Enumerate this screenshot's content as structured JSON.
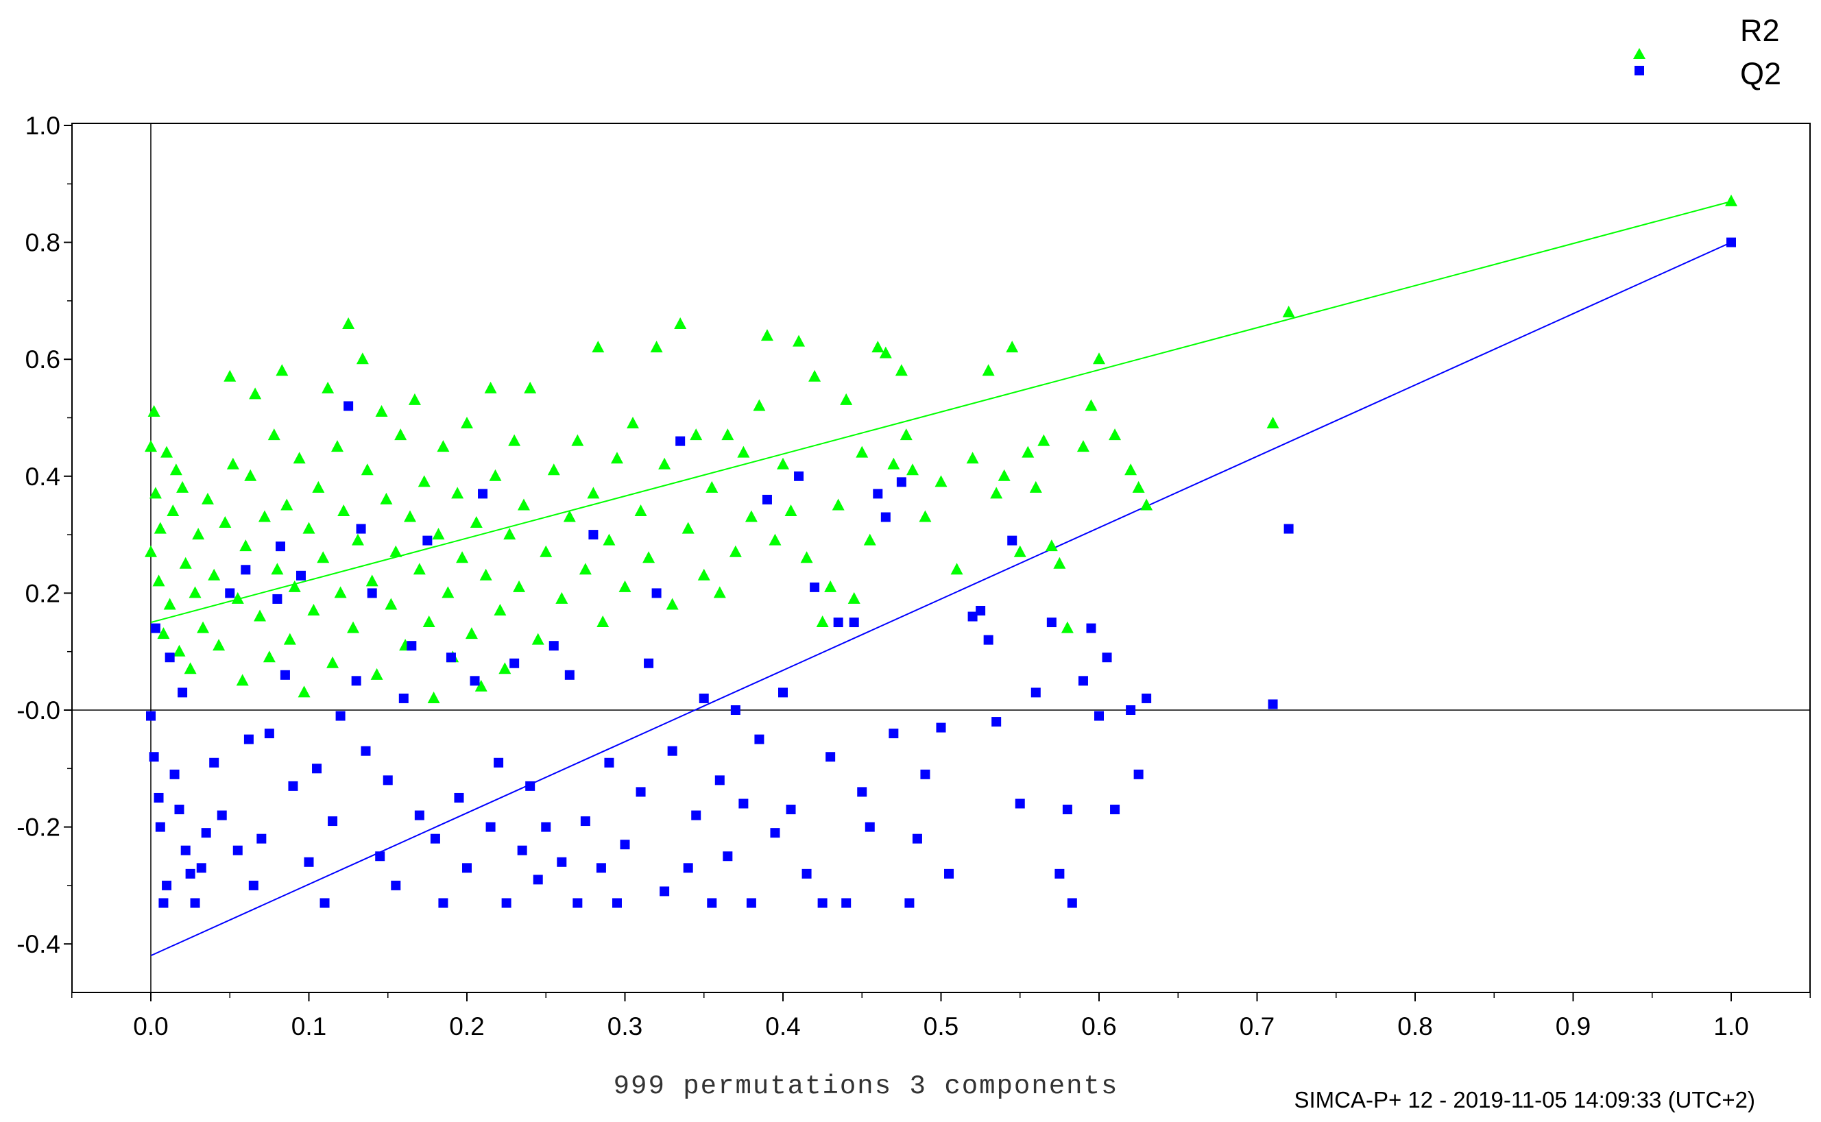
{
  "chart_data": {
    "type": "scatter",
    "title": "",
    "xlabel": "999 permutations 3 components",
    "ylabel": "",
    "footer": "SIMCA-P+ 12 - 2019-11-05 14:09:33 (UTC+2)",
    "xlim": [
      -0.05,
      1.05
    ],
    "ylim": [
      -0.49,
      1.0
    ],
    "x_ticks": [
      0.0,
      0.1,
      0.2,
      0.3,
      0.4,
      0.5,
      0.6,
      0.7,
      0.8,
      0.9,
      1.0
    ],
    "x_tick_labels": [
      "0.0",
      "0.1",
      "0.2",
      "0.3",
      "0.4",
      "0.5",
      "0.6",
      "0.7",
      "0.8",
      "0.9",
      "1.0"
    ],
    "y_ticks": [
      1.0,
      0.8,
      0.6,
      0.4,
      0.2,
      0.0,
      -0.2,
      -0.4
    ],
    "y_tick_labels": [
      "1.0",
      "0.8",
      "0.6",
      "0.4",
      "0.2",
      "-0.0",
      "-0.2",
      "-0.4"
    ],
    "grid": false,
    "legend_position": "top-right",
    "series": [
      {
        "name": "R2",
        "color": "#00ff00",
        "marker": "triangle",
        "regression": {
          "intercept": 0.15,
          "slope": 0.72
        },
        "points": [
          [
            0.0,
            0.45
          ],
          [
            0.0,
            0.27
          ],
          [
            0.002,
            0.51
          ],
          [
            0.003,
            0.37
          ],
          [
            0.005,
            0.22
          ],
          [
            0.006,
            0.31
          ],
          [
            0.008,
            0.13
          ],
          [
            0.01,
            0.44
          ],
          [
            0.012,
            0.18
          ],
          [
            0.014,
            0.34
          ],
          [
            0.016,
            0.41
          ],
          [
            0.018,
            0.1
          ],
          [
            0.02,
            0.38
          ],
          [
            0.022,
            0.25
          ],
          [
            0.025,
            0.07
          ],
          [
            0.028,
            0.2
          ],
          [
            0.03,
            0.3
          ],
          [
            0.033,
            0.14
          ],
          [
            0.036,
            0.36
          ],
          [
            0.04,
            0.23
          ],
          [
            0.043,
            0.11
          ],
          [
            0.047,
            0.32
          ],
          [
            0.05,
            0.57
          ],
          [
            0.052,
            0.42
          ],
          [
            0.055,
            0.19
          ],
          [
            0.058,
            0.05
          ],
          [
            0.06,
            0.28
          ],
          [
            0.063,
            0.4
          ],
          [
            0.066,
            0.54
          ],
          [
            0.069,
            0.16
          ],
          [
            0.072,
            0.33
          ],
          [
            0.075,
            0.09
          ],
          [
            0.078,
            0.47
          ],
          [
            0.08,
            0.24
          ],
          [
            0.083,
            0.58
          ],
          [
            0.086,
            0.35
          ],
          [
            0.088,
            0.12
          ],
          [
            0.091,
            0.21
          ],
          [
            0.094,
            0.43
          ],
          [
            0.097,
            0.03
          ],
          [
            0.1,
            0.31
          ],
          [
            0.103,
            0.17
          ],
          [
            0.106,
            0.38
          ],
          [
            0.109,
            0.26
          ],
          [
            0.112,
            0.55
          ],
          [
            0.115,
            0.08
          ],
          [
            0.118,
            0.45
          ],
          [
            0.12,
            0.2
          ],
          [
            0.122,
            0.34
          ],
          [
            0.125,
            0.66
          ],
          [
            0.128,
            0.14
          ],
          [
            0.131,
            0.29
          ],
          [
            0.134,
            0.6
          ],
          [
            0.137,
            0.41
          ],
          [
            0.14,
            0.22
          ],
          [
            0.143,
            0.06
          ],
          [
            0.146,
            0.51
          ],
          [
            0.149,
            0.36
          ],
          [
            0.152,
            0.18
          ],
          [
            0.155,
            0.27
          ],
          [
            0.158,
            0.47
          ],
          [
            0.161,
            0.11
          ],
          [
            0.164,
            0.33
          ],
          [
            0.167,
            0.53
          ],
          [
            0.17,
            0.24
          ],
          [
            0.173,
            0.39
          ],
          [
            0.176,
            0.15
          ],
          [
            0.179,
            0.02
          ],
          [
            0.182,
            0.3
          ],
          [
            0.185,
            0.45
          ],
          [
            0.188,
            0.2
          ],
          [
            0.191,
            0.09
          ],
          [
            0.194,
            0.37
          ],
          [
            0.197,
            0.26
          ],
          [
            0.2,
            0.49
          ],
          [
            0.203,
            0.13
          ],
          [
            0.206,
            0.32
          ],
          [
            0.209,
            0.04
          ],
          [
            0.212,
            0.23
          ],
          [
            0.215,
            0.55
          ],
          [
            0.218,
            0.4
          ],
          [
            0.221,
            0.17
          ],
          [
            0.224,
            0.07
          ],
          [
            0.227,
            0.3
          ],
          [
            0.23,
            0.46
          ],
          [
            0.233,
            0.21
          ],
          [
            0.236,
            0.35
          ],
          [
            0.24,
            0.55
          ],
          [
            0.245,
            0.12
          ],
          [
            0.25,
            0.27
          ],
          [
            0.255,
            0.41
          ],
          [
            0.26,
            0.19
          ],
          [
            0.265,
            0.33
          ],
          [
            0.27,
            0.46
          ],
          [
            0.275,
            0.24
          ],
          [
            0.28,
            0.37
          ],
          [
            0.283,
            0.62
          ],
          [
            0.286,
            0.15
          ],
          [
            0.29,
            0.29
          ],
          [
            0.295,
            0.43
          ],
          [
            0.3,
            0.21
          ],
          [
            0.305,
            0.49
          ],
          [
            0.31,
            0.34
          ],
          [
            0.315,
            0.26
          ],
          [
            0.32,
            0.62
          ],
          [
            0.325,
            0.42
          ],
          [
            0.33,
            0.18
          ],
          [
            0.335,
            0.66
          ],
          [
            0.34,
            0.31
          ],
          [
            0.345,
            0.47
          ],
          [
            0.35,
            0.23
          ],
          [
            0.355,
            0.38
          ],
          [
            0.36,
            0.2
          ],
          [
            0.365,
            0.47
          ],
          [
            0.37,
            0.27
          ],
          [
            0.375,
            0.44
          ],
          [
            0.38,
            0.33
          ],
          [
            0.385,
            0.52
          ],
          [
            0.39,
            0.64
          ],
          [
            0.395,
            0.29
          ],
          [
            0.4,
            0.42
          ],
          [
            0.405,
            0.34
          ],
          [
            0.41,
            0.63
          ],
          [
            0.415,
            0.26
          ],
          [
            0.42,
            0.57
          ],
          [
            0.425,
            0.15
          ],
          [
            0.43,
            0.21
          ],
          [
            0.435,
            0.35
          ],
          [
            0.44,
            0.53
          ],
          [
            0.445,
            0.19
          ],
          [
            0.45,
            0.44
          ],
          [
            0.455,
            0.29
          ],
          [
            0.46,
            0.62
          ],
          [
            0.465,
            0.61
          ],
          [
            0.47,
            0.42
          ],
          [
            0.475,
            0.58
          ],
          [
            0.478,
            0.47
          ],
          [
            0.482,
            0.41
          ],
          [
            0.49,
            0.33
          ],
          [
            0.5,
            0.39
          ],
          [
            0.51,
            0.24
          ],
          [
            0.52,
            0.43
          ],
          [
            0.53,
            0.58
          ],
          [
            0.535,
            0.37
          ],
          [
            0.54,
            0.4
          ],
          [
            0.545,
            0.62
          ],
          [
            0.55,
            0.27
          ],
          [
            0.555,
            0.44
          ],
          [
            0.56,
            0.38
          ],
          [
            0.565,
            0.46
          ],
          [
            0.57,
            0.28
          ],
          [
            0.575,
            0.25
          ],
          [
            0.58,
            0.14
          ],
          [
            0.59,
            0.45
          ],
          [
            0.595,
            0.52
          ],
          [
            0.6,
            0.6
          ],
          [
            0.61,
            0.47
          ],
          [
            0.62,
            0.41
          ],
          [
            0.625,
            0.38
          ],
          [
            0.63,
            0.35
          ],
          [
            0.71,
            0.49
          ],
          [
            0.72,
            0.68
          ],
          [
            1.0,
            0.87
          ]
        ]
      },
      {
        "name": "Q2",
        "color": "#0000ff",
        "marker": "square",
        "regression": {
          "intercept": -0.42,
          "slope": 1.22
        },
        "points": [
          [
            0.0,
            -0.01
          ],
          [
            0.002,
            -0.08
          ],
          [
            0.003,
            0.14
          ],
          [
            0.005,
            -0.15
          ],
          [
            0.006,
            -0.2
          ],
          [
            0.008,
            -0.33
          ],
          [
            0.01,
            -0.3
          ],
          [
            0.012,
            0.09
          ],
          [
            0.015,
            -0.11
          ],
          [
            0.018,
            -0.17
          ],
          [
            0.02,
            0.03
          ],
          [
            0.022,
            -0.24
          ],
          [
            0.025,
            -0.28
          ],
          [
            0.028,
            -0.33
          ],
          [
            0.032,
            -0.27
          ],
          [
            0.035,
            -0.21
          ],
          [
            0.04,
            -0.09
          ],
          [
            0.045,
            -0.18
          ],
          [
            0.05,
            0.2
          ],
          [
            0.055,
            -0.24
          ],
          [
            0.06,
            0.24
          ],
          [
            0.062,
            -0.05
          ],
          [
            0.065,
            -0.3
          ],
          [
            0.07,
            -0.22
          ],
          [
            0.075,
            -0.04
          ],
          [
            0.08,
            0.19
          ],
          [
            0.082,
            0.28
          ],
          [
            0.085,
            0.06
          ],
          [
            0.09,
            -0.13
          ],
          [
            0.095,
            0.23
          ],
          [
            0.1,
            -0.26
          ],
          [
            0.105,
            -0.1
          ],
          [
            0.11,
            -0.33
          ],
          [
            0.115,
            -0.19
          ],
          [
            0.12,
            -0.01
          ],
          [
            0.125,
            0.52
          ],
          [
            0.13,
            0.05
          ],
          [
            0.133,
            0.31
          ],
          [
            0.136,
            -0.07
          ],
          [
            0.14,
            0.2
          ],
          [
            0.145,
            -0.25
          ],
          [
            0.15,
            -0.12
          ],
          [
            0.155,
            -0.3
          ],
          [
            0.16,
            0.02
          ],
          [
            0.165,
            0.11
          ],
          [
            0.17,
            -0.18
          ],
          [
            0.175,
            0.29
          ],
          [
            0.18,
            -0.22
          ],
          [
            0.185,
            -0.33
          ],
          [
            0.19,
            0.09
          ],
          [
            0.195,
            -0.15
          ],
          [
            0.2,
            -0.27
          ],
          [
            0.205,
            0.05
          ],
          [
            0.21,
            0.37
          ],
          [
            0.215,
            -0.2
          ],
          [
            0.22,
            -0.09
          ],
          [
            0.225,
            -0.33
          ],
          [
            0.23,
            0.08
          ],
          [
            0.235,
            -0.24
          ],
          [
            0.24,
            -0.13
          ],
          [
            0.245,
            -0.29
          ],
          [
            0.25,
            -0.2
          ],
          [
            0.255,
            0.11
          ],
          [
            0.26,
            -0.26
          ],
          [
            0.265,
            0.06
          ],
          [
            0.27,
            -0.33
          ],
          [
            0.275,
            -0.19
          ],
          [
            0.28,
            0.3
          ],
          [
            0.285,
            -0.27
          ],
          [
            0.29,
            -0.09
          ],
          [
            0.295,
            -0.33
          ],
          [
            0.3,
            -0.23
          ],
          [
            0.31,
            -0.14
          ],
          [
            0.315,
            0.08
          ],
          [
            0.32,
            0.2
          ],
          [
            0.325,
            -0.31
          ],
          [
            0.33,
            -0.07
          ],
          [
            0.335,
            0.46
          ],
          [
            0.34,
            -0.27
          ],
          [
            0.345,
            -0.18
          ],
          [
            0.35,
            0.02
          ],
          [
            0.355,
            -0.33
          ],
          [
            0.36,
            -0.12
          ],
          [
            0.365,
            -0.25
          ],
          [
            0.37,
            0.0
          ],
          [
            0.375,
            -0.16
          ],
          [
            0.38,
            -0.33
          ],
          [
            0.385,
            -0.05
          ],
          [
            0.39,
            0.36
          ],
          [
            0.395,
            -0.21
          ],
          [
            0.4,
            0.03
          ],
          [
            0.405,
            -0.17
          ],
          [
            0.41,
            0.4
          ],
          [
            0.415,
            -0.28
          ],
          [
            0.42,
            0.21
          ],
          [
            0.425,
            -0.33
          ],
          [
            0.43,
            -0.08
          ],
          [
            0.435,
            0.15
          ],
          [
            0.44,
            -0.33
          ],
          [
            0.445,
            0.15
          ],
          [
            0.45,
            -0.14
          ],
          [
            0.455,
            -0.2
          ],
          [
            0.46,
            0.37
          ],
          [
            0.465,
            0.33
          ],
          [
            0.47,
            -0.04
          ],
          [
            0.475,
            0.39
          ],
          [
            0.48,
            -0.33
          ],
          [
            0.485,
            -0.22
          ],
          [
            0.49,
            -0.11
          ],
          [
            0.5,
            -0.03
          ],
          [
            0.505,
            -0.28
          ],
          [
            0.52,
            0.16
          ],
          [
            0.525,
            0.17
          ],
          [
            0.53,
            0.12
          ],
          [
            0.535,
            -0.02
          ],
          [
            0.545,
            0.29
          ],
          [
            0.55,
            -0.16
          ],
          [
            0.56,
            0.03
          ],
          [
            0.57,
            0.15
          ],
          [
            0.575,
            -0.28
          ],
          [
            0.58,
            -0.17
          ],
          [
            0.583,
            -0.33
          ],
          [
            0.59,
            0.05
          ],
          [
            0.595,
            0.14
          ],
          [
            0.6,
            -0.01
          ],
          [
            0.605,
            0.09
          ],
          [
            0.61,
            -0.17
          ],
          [
            0.62,
            0.0
          ],
          [
            0.625,
            -0.11
          ],
          [
            0.63,
            0.02
          ],
          [
            0.71,
            0.01
          ],
          [
            0.72,
            0.31
          ],
          [
            1.0,
            0.8
          ]
        ]
      }
    ]
  }
}
